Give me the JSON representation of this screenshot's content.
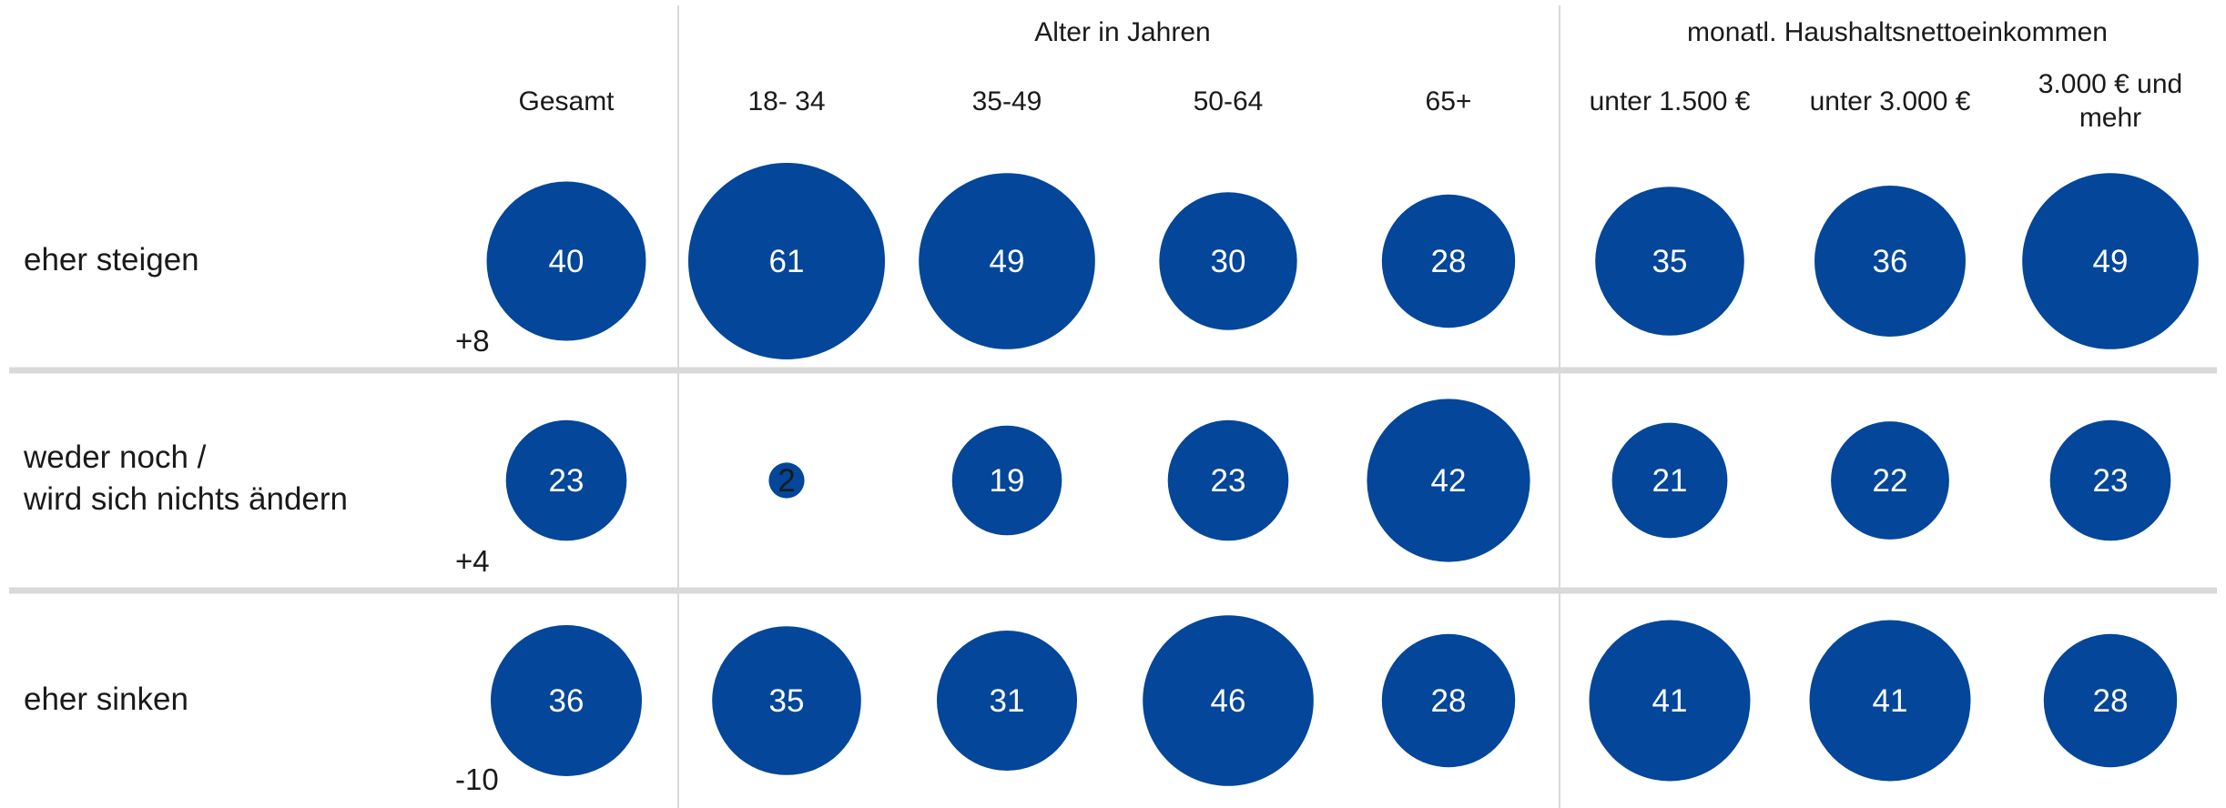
{
  "colors": {
    "bubble": "#03469a",
    "divider": "#d9d9d9",
    "vline": "#d9d9d9",
    "text": "#1a1a1a",
    "value_text": "#ffffff"
  },
  "chart_data": {
    "type": "bubble-table",
    "group_headers": [
      "Alter in Jahren",
      "monatl. Haushaltsnettoeinkommen"
    ],
    "columns": [
      "Gesamt",
      "18- 34",
      "35-49",
      "50-64",
      "65+",
      "unter 1.500 €",
      "unter 3.000 €",
      "3.000 € und mehr"
    ],
    "column_groups": [
      null,
      0,
      0,
      0,
      0,
      1,
      1,
      1
    ],
    "rows": [
      {
        "label": [
          "eher steigen"
        ],
        "delta": "+8",
        "values": [
          40,
          61,
          49,
          30,
          28,
          35,
          36,
          49
        ]
      },
      {
        "label": [
          "weder noch /",
          "wird sich nichts ändern"
        ],
        "delta": "+4",
        "values": [
          23,
          2,
          19,
          23,
          42,
          21,
          22,
          23
        ]
      },
      {
        "label": [
          "eher sinken"
        ],
        "delta": "-10",
        "values": [
          36,
          35,
          31,
          46,
          28,
          41,
          41,
          28
        ]
      }
    ]
  }
}
